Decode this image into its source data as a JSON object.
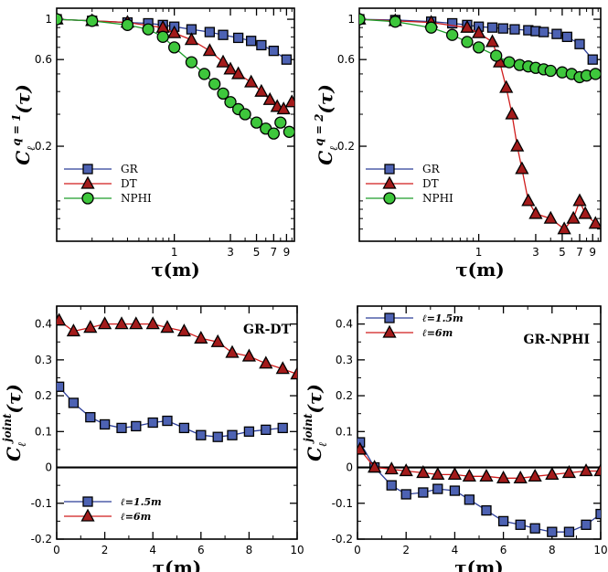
{
  "colors": {
    "GR": "#2c3e99",
    "GR_fill": "#4d62b3",
    "DT": "#d01c1c",
    "DT_fill": "#a31b1b",
    "NPHI": "#1e9d2a",
    "NPHI_fill": "#3ec73c"
  },
  "chart_data": [
    {
      "type": "line",
      "scale": "log-log",
      "ylabel_main": "C",
      "ylabel_sub": "ℓ",
      "ylabel_sup": "q = 1",
      "ylabel_arg": "(τ)",
      "xlabel": "τ(m)",
      "xlim": [
        0.1,
        10.5
      ],
      "ylim": [
        0.06,
        1.15
      ],
      "xticks": [
        1,
        3,
        5,
        7,
        9
      ],
      "xticklabels": [
        "1",
        "3",
        "5",
        "7",
        "9"
      ],
      "yticks": [
        0.2,
        0.6,
        1
      ],
      "yticklabels": [
        "0.2",
        "0.6",
        "1"
      ],
      "legend": [
        "GR",
        "DT",
        "NPHI"
      ],
      "series": [
        {
          "name": "GR",
          "marker": "square",
          "x": [
            0.1,
            0.2,
            0.4,
            0.6,
            0.8,
            1.0,
            1.4,
            2.0,
            2.6,
            3.5,
            4.5,
            5.5,
            7.0,
            9.0
          ],
          "y": [
            1.0,
            0.98,
            0.96,
            0.95,
            0.93,
            0.91,
            0.88,
            0.85,
            0.82,
            0.79,
            0.76,
            0.72,
            0.67,
            0.6
          ]
        },
        {
          "name": "DT",
          "marker": "triangle",
          "x": [
            0.1,
            0.2,
            0.4,
            0.8,
            1.0,
            1.4,
            2.0,
            2.6,
            3.0,
            3.5,
            4.5,
            5.5,
            6.5,
            7.5,
            8.5,
            10.0
          ],
          "y": [
            1.0,
            0.98,
            0.96,
            0.9,
            0.84,
            0.77,
            0.67,
            0.58,
            0.53,
            0.5,
            0.45,
            0.4,
            0.36,
            0.33,
            0.32,
            0.35
          ]
        },
        {
          "name": "NPHI",
          "marker": "circle",
          "x": [
            0.1,
            0.2,
            0.4,
            0.6,
            0.8,
            1.0,
            1.4,
            1.8,
            2.2,
            2.6,
            3.0,
            3.5,
            4.0,
            5.0,
            6.0,
            7.0,
            8.0,
            9.5
          ],
          "y": [
            1.0,
            0.98,
            0.93,
            0.88,
            0.8,
            0.7,
            0.58,
            0.5,
            0.44,
            0.39,
            0.35,
            0.32,
            0.3,
            0.27,
            0.25,
            0.235,
            0.27,
            0.24
          ]
        }
      ]
    },
    {
      "type": "line",
      "scale": "log-log",
      "ylabel_main": "C",
      "ylabel_sub": "ℓ",
      "ylabel_sup": "q = 2",
      "ylabel_arg": "(τ)",
      "xlabel": "τ(m)",
      "xlim": [
        0.1,
        10.5
      ],
      "ylim": [
        0.06,
        1.15
      ],
      "xticks": [
        1,
        3,
        5,
        7,
        9
      ],
      "xticklabels": [
        "1",
        "3",
        "5",
        "7",
        "9"
      ],
      "yticks": [
        0.2,
        0.6,
        1
      ],
      "yticklabels": [
        "0.2",
        "0.6",
        "1"
      ],
      "legend": [
        "GR",
        "DT",
        "NPHI"
      ],
      "series": [
        {
          "name": "GR",
          "marker": "square",
          "x": [
            0.1,
            0.2,
            0.4,
            0.6,
            0.8,
            1.0,
            1.3,
            1.6,
            2.0,
            2.6,
            3.0,
            3.5,
            4.5,
            5.5,
            7.0,
            9.0
          ],
          "y": [
            1.0,
            0.99,
            0.97,
            0.95,
            0.93,
            0.91,
            0.9,
            0.89,
            0.88,
            0.87,
            0.86,
            0.85,
            0.83,
            0.8,
            0.73,
            0.6
          ]
        },
        {
          "name": "DT",
          "marker": "triangle",
          "x": [
            0.1,
            0.2,
            0.4,
            0.8,
            1.0,
            1.3,
            1.5,
            1.7,
            1.9,
            2.1,
            2.3,
            2.6,
            3.0,
            4.0,
            5.2,
            6.2,
            7.0,
            7.8,
            9.5
          ],
          "y": [
            1.0,
            0.98,
            0.96,
            0.9,
            0.84,
            0.75,
            0.58,
            0.42,
            0.3,
            0.2,
            0.15,
            0.1,
            0.085,
            0.08,
            0.07,
            0.08,
            0.1,
            0.085,
            0.075
          ]
        },
        {
          "name": "NPHI",
          "marker": "circle",
          "x": [
            0.1,
            0.2,
            0.4,
            0.6,
            0.8,
            1.0,
            1.4,
            1.8,
            2.2,
            2.6,
            3.0,
            3.5,
            4.0,
            5.0,
            6.0,
            7.0,
            8.0,
            9.5
          ],
          "y": [
            1.0,
            0.97,
            0.9,
            0.82,
            0.75,
            0.7,
            0.63,
            0.58,
            0.56,
            0.55,
            0.54,
            0.53,
            0.52,
            0.51,
            0.5,
            0.48,
            0.49,
            0.5
          ]
        }
      ]
    },
    {
      "type": "line",
      "scale": "linear",
      "annotation": "GR-DT",
      "ylabel_main": "C",
      "ylabel_sub": "ℓ",
      "ylabel_sup": "joint",
      "ylabel_arg": "(τ)",
      "xlabel": "τ(m)",
      "xlim": [
        0,
        10
      ],
      "ylim": [
        -0.2,
        0.45
      ],
      "xticks": [
        0,
        2,
        4,
        6,
        8,
        10
      ],
      "xticklabels": [
        "0",
        "2",
        "4",
        "6",
        "8",
        "10"
      ],
      "yticks": [
        -0.2,
        -0.1,
        0,
        0.1,
        0.2,
        0.3,
        0.4
      ],
      "yticklabels": [
        "-0.2",
        "-0.1",
        "0",
        "0.1",
        "0.2",
        "0.3",
        "0.4"
      ],
      "zero_line": true,
      "legend": [
        "ℓ=1.5m",
        "ℓ=6m"
      ],
      "series": [
        {
          "name": "ℓ=1.5m",
          "marker": "square",
          "x": [
            0.1,
            0.7,
            1.4,
            2.0,
            2.7,
            3.3,
            4.0,
            4.6,
            5.3,
            6.0,
            6.7,
            7.3,
            8.0,
            8.7,
            9.4
          ],
          "y": [
            0.225,
            0.18,
            0.14,
            0.12,
            0.11,
            0.115,
            0.125,
            0.13,
            0.11,
            0.09,
            0.085,
            0.09,
            0.1,
            0.105,
            0.11
          ]
        },
        {
          "name": "ℓ=6m",
          "marker": "triangle",
          "x": [
            0.1,
            0.7,
            1.4,
            2.0,
            2.7,
            3.3,
            4.0,
            4.6,
            5.3,
            6.0,
            6.7,
            7.3,
            8.0,
            8.7,
            9.4,
            10.0
          ],
          "y": [
            0.41,
            0.38,
            0.39,
            0.4,
            0.4,
            0.4,
            0.4,
            0.39,
            0.38,
            0.36,
            0.35,
            0.32,
            0.31,
            0.29,
            0.275,
            0.26
          ]
        }
      ]
    },
    {
      "type": "line",
      "scale": "linear",
      "annotation": "GR-NPHI",
      "ylabel_main": "C",
      "ylabel_sub": "ℓ",
      "ylabel_sup": "joint",
      "ylabel_arg": "(τ)",
      "xlabel": "τ(m)",
      "xlim": [
        0,
        10
      ],
      "ylim": [
        -0.2,
        0.45
      ],
      "xticks": [
        0,
        2,
        4,
        6,
        8,
        10
      ],
      "xticklabels": [
        "0",
        "2",
        "4",
        "6",
        "8",
        "10"
      ],
      "yticks": [
        -0.2,
        -0.1,
        0,
        0.1,
        0.2,
        0.3,
        0.4
      ],
      "yticklabels": [
        "-0.2",
        "-0.1",
        "0",
        "0.1",
        "0.2",
        "0.3",
        "0.4"
      ],
      "zero_line": true,
      "legend": [
        "ℓ=1.5m",
        "ℓ=6m"
      ],
      "series": [
        {
          "name": "ℓ=1.5m",
          "marker": "square",
          "x": [
            0.1,
            0.7,
            1.4,
            2.0,
            2.7,
            3.3,
            4.0,
            4.6,
            5.3,
            6.0,
            6.7,
            7.3,
            8.0,
            8.7,
            9.4,
            10.0
          ],
          "y": [
            0.07,
            0.0,
            -0.05,
            -0.075,
            -0.07,
            -0.06,
            -0.065,
            -0.09,
            -0.12,
            -0.15,
            -0.16,
            -0.17,
            -0.18,
            -0.18,
            -0.16,
            -0.13
          ]
        },
        {
          "name": "ℓ=6m",
          "marker": "triangle",
          "x": [
            0.1,
            0.7,
            1.4,
            2.0,
            2.7,
            3.3,
            4.0,
            4.6,
            5.3,
            6.0,
            6.7,
            7.3,
            8.0,
            8.7,
            9.4,
            10.0
          ],
          "y": [
            0.05,
            0.0,
            -0.005,
            -0.01,
            -0.015,
            -0.02,
            -0.02,
            -0.025,
            -0.025,
            -0.03,
            -0.03,
            -0.025,
            -0.02,
            -0.015,
            -0.01,
            -0.01
          ]
        }
      ]
    }
  ]
}
